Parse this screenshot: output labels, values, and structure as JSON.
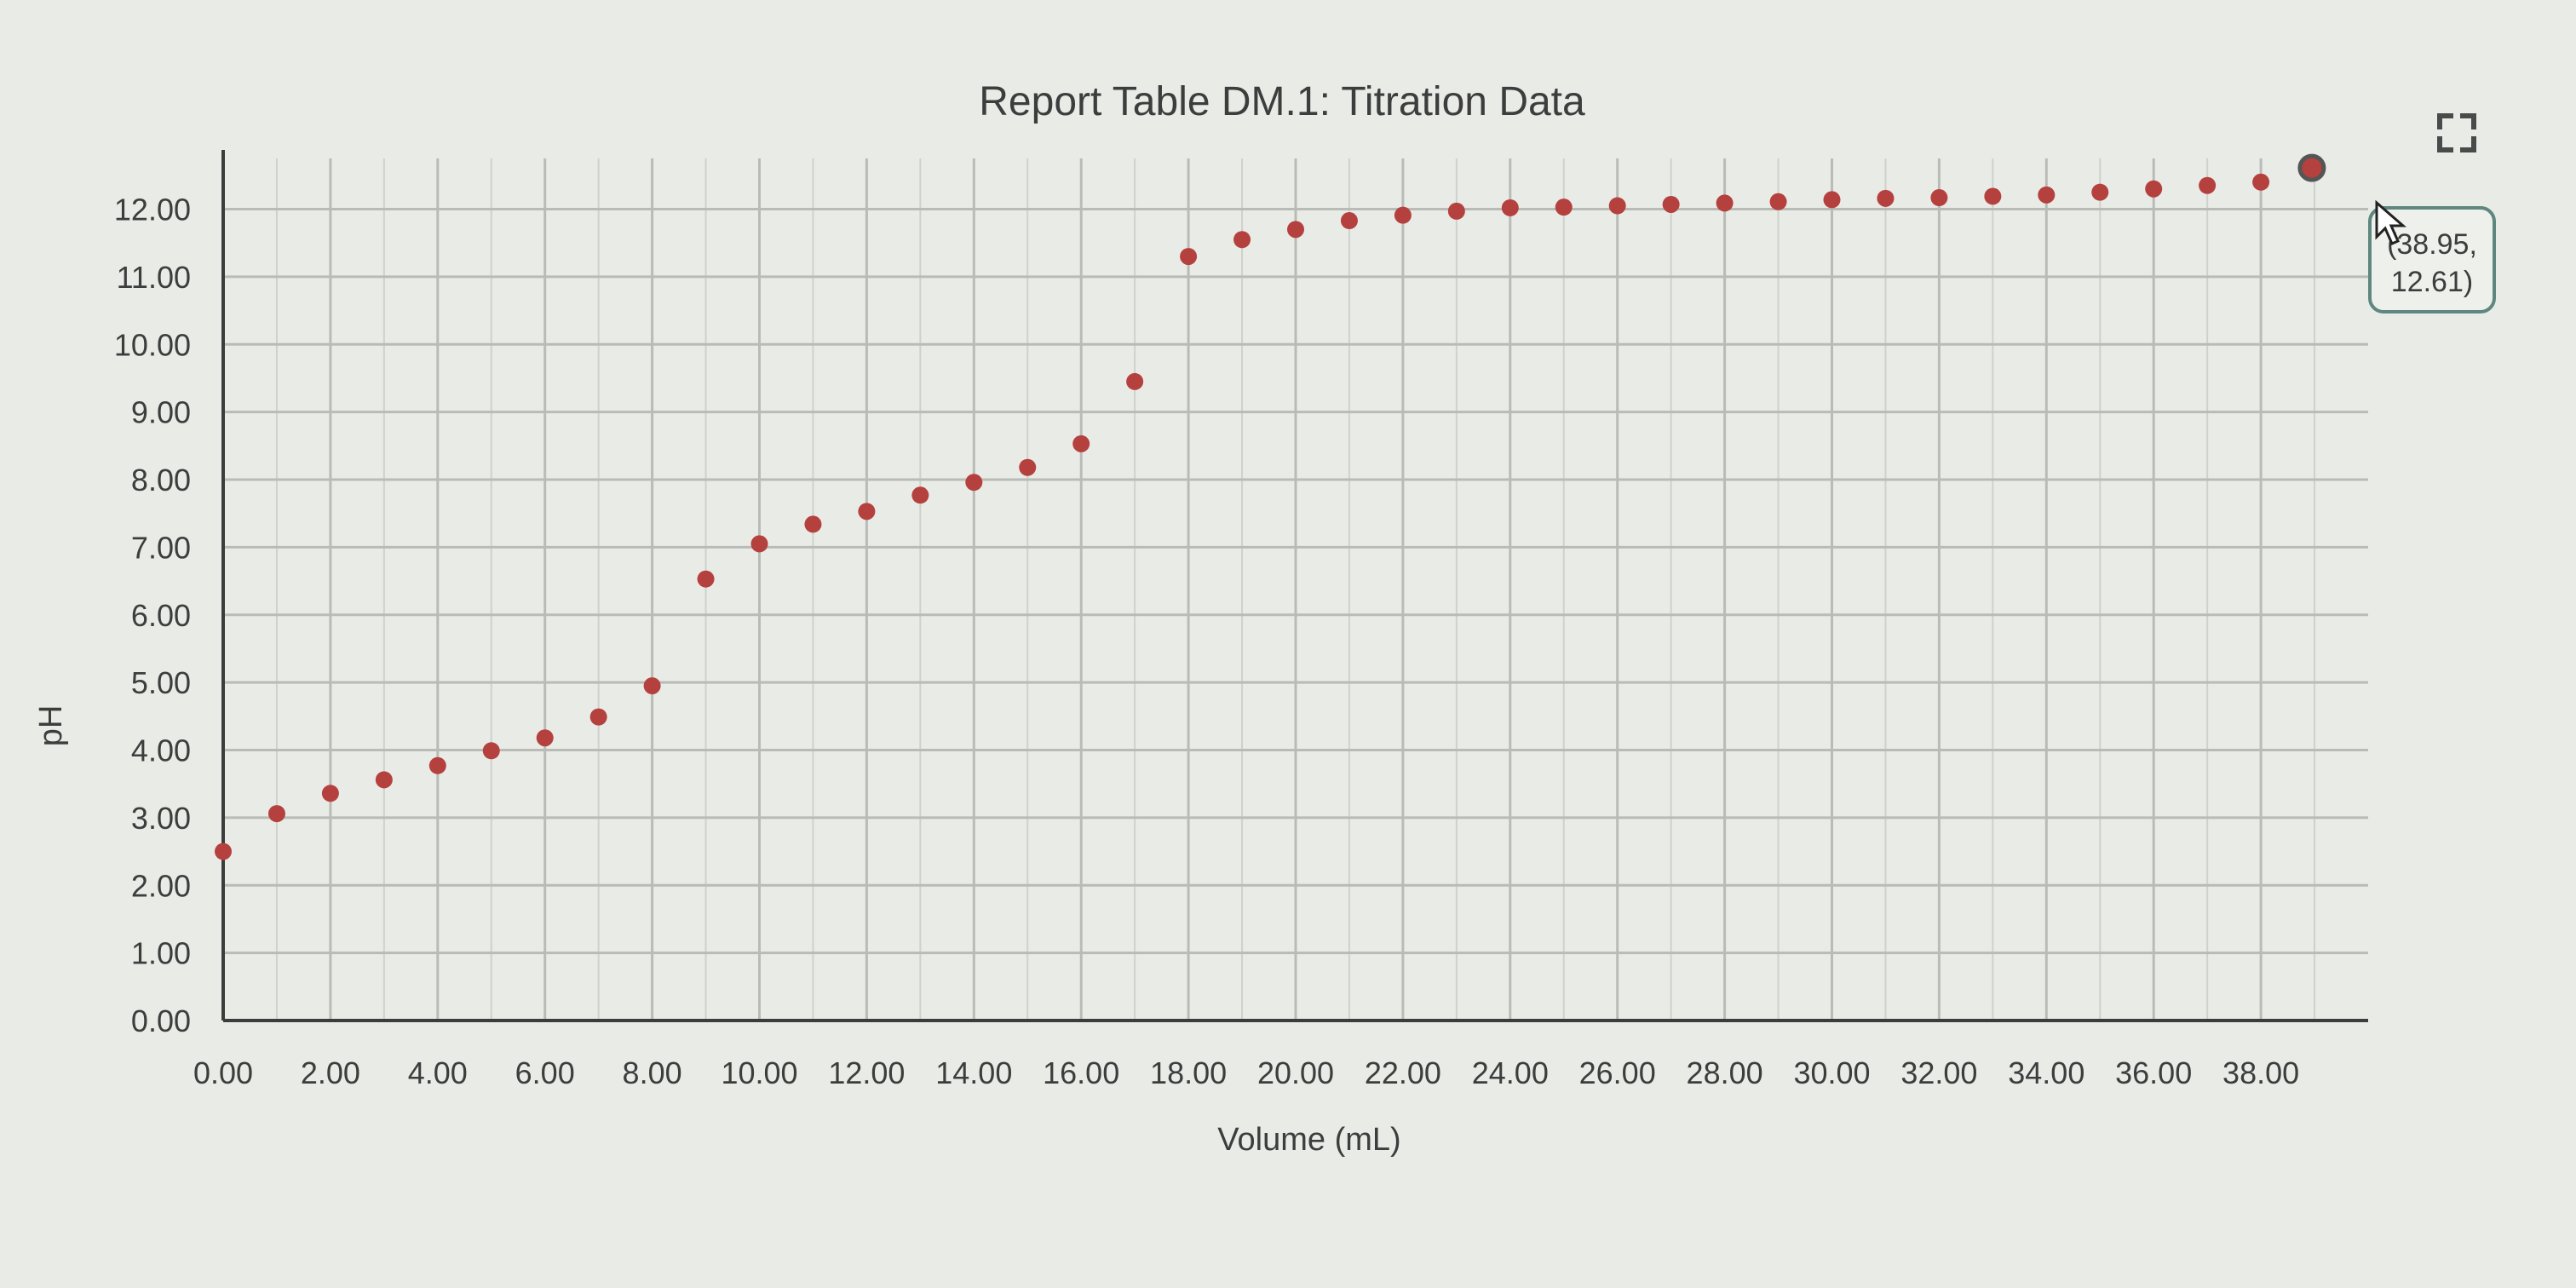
{
  "colors": {
    "background": "#e9ebe7",
    "point": "#b5413f",
    "grid": "#b9bcb6",
    "axis": "#3c3c3c",
    "tooltip_border": "#5f8780"
  },
  "icons": {
    "fullscreen": "fullscreen-icon"
  },
  "tooltip": {
    "line1": "(38.95,",
    "line2": "12.61)"
  },
  "chart_data": {
    "type": "scatter",
    "title": "Report Table DM.1: Titration Data",
    "xlabel": "Volume (mL)",
    "ylabel": "pH",
    "xlim": [
      0,
      40
    ],
    "ylim": [
      0,
      12.75
    ],
    "grid": true,
    "x_ticks": [
      "0.00",
      "2.00",
      "4.00",
      "6.00",
      "8.00",
      "10.00",
      "12.00",
      "14.00",
      "16.00",
      "18.00",
      "20.00",
      "22.00",
      "24.00",
      "26.00",
      "28.00",
      "30.00",
      "32.00",
      "34.00",
      "36.00",
      "38.00"
    ],
    "y_ticks": [
      "0.00",
      "1.00",
      "2.00",
      "3.00",
      "4.00",
      "5.00",
      "6.00",
      "7.00",
      "8.00",
      "9.00",
      "10.00",
      "11.00",
      "12.00"
    ],
    "series": [
      {
        "x": [
          0,
          1,
          2,
          3,
          4,
          5,
          6,
          7,
          8,
          9,
          10,
          11,
          12,
          13,
          14,
          15,
          16,
          17,
          18,
          19,
          20,
          21,
          22,
          23,
          24,
          25,
          26,
          27,
          28,
          29,
          30,
          31,
          32,
          33,
          34,
          35,
          36,
          37,
          38,
          38.95
        ],
        "y": [
          2.5,
          3.06,
          3.36,
          3.56,
          3.77,
          3.99,
          4.18,
          4.49,
          4.95,
          6.53,
          7.05,
          7.34,
          7.53,
          7.77,
          7.96,
          8.18,
          8.53,
          9.45,
          11.3,
          11.55,
          11.7,
          11.83,
          11.91,
          11.97,
          12.02,
          12.03,
          12.05,
          12.07,
          12.09,
          12.11,
          12.14,
          12.16,
          12.17,
          12.19,
          12.21,
          12.25,
          12.3,
          12.35,
          12.4,
          12.61
        ]
      }
    ]
  }
}
